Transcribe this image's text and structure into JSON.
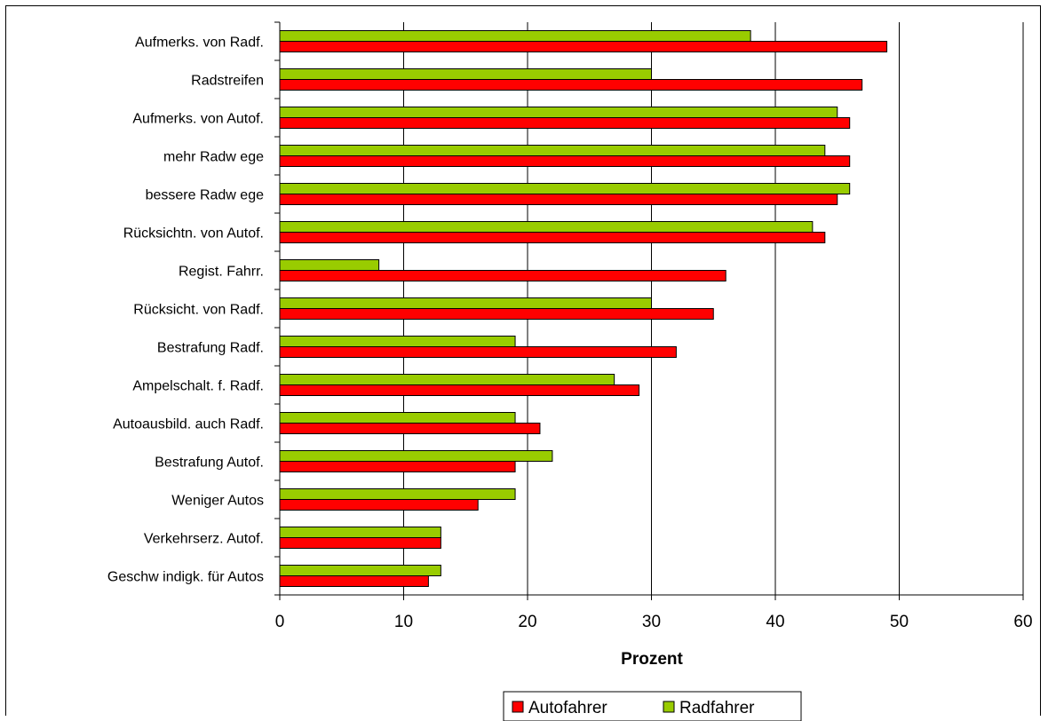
{
  "chart_data": {
    "type": "bar",
    "orientation": "horizontal",
    "categories": [
      "Aufmerks. von Radf.",
      "Radstreifen",
      "Aufmerks. von Autof.",
      "mehr Radw ege",
      "bessere Radw ege",
      "Rücksichtn. von Autof.",
      "Regist. Fahrr.",
      "Rücksicht. von Radf.",
      "Bestrafung Radf.",
      "Ampelschalt. f. Radf.",
      "Autoausbild. auch Radf.",
      "Bestrafung Autof.",
      "Weniger Autos",
      "Verkehrserz. Autof.",
      "Geschw indigk. für Autos"
    ],
    "series": [
      {
        "name": "Autofahrer",
        "color": "#ff0000",
        "values": [
          49,
          47,
          46,
          46,
          45,
          44,
          36,
          35,
          32,
          29,
          21,
          19,
          16,
          13,
          12
        ]
      },
      {
        "name": "Radfahrer",
        "color": "#99cc00",
        "values": [
          38,
          30,
          45,
          44,
          46,
          43,
          8,
          30,
          19,
          27,
          19,
          22,
          19,
          13,
          13
        ]
      }
    ],
    "title": "",
    "xlabel": "Prozent",
    "ylabel": "",
    "xlim": [
      0,
      60
    ],
    "xticks": [
      0,
      10,
      20,
      30,
      40,
      50,
      60
    ],
    "grid": true,
    "legend_position": "bottom"
  }
}
